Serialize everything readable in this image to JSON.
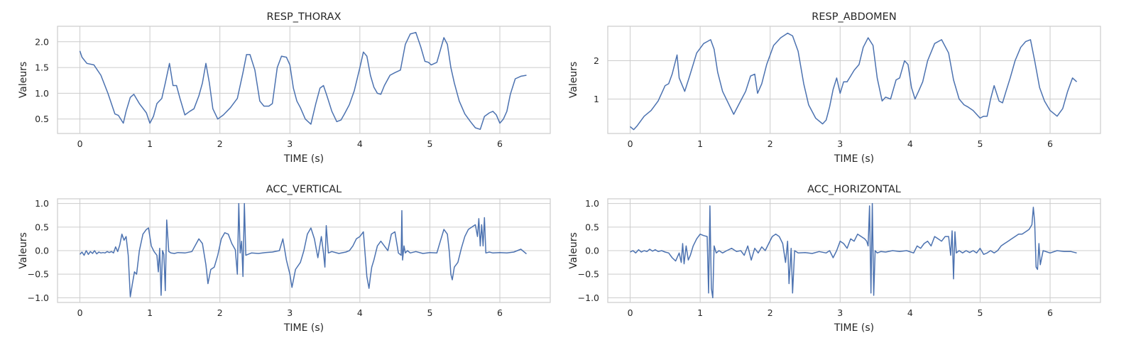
{
  "chart_data": [
    {
      "type": "line",
      "title": "RESP_THORAX",
      "xlabel": "TIME (s)",
      "ylabel": "Valeurs",
      "xlim": [
        -0.32,
        6.72
      ],
      "ylim": [
        0.22,
        2.3
      ],
      "xticks": [
        0,
        1,
        2,
        3,
        4,
        5,
        6
      ],
      "yticks": [
        0.5,
        1.0,
        1.5,
        2.0
      ],
      "ytick_labels": [
        "0.5",
        "1.0",
        "1.5",
        "2.0"
      ],
      "grid": true,
      "series": [
        {
          "color": "#4c72b0",
          "x": [
            0,
            0.03,
            0.1,
            0.2,
            0.3,
            0.4,
            0.5,
            0.55,
            0.62,
            0.66,
            0.72,
            0.77,
            0.85,
            0.95,
            1.0,
            1.05,
            1.1,
            1.17,
            1.22,
            1.28,
            1.33,
            1.38,
            1.43,
            1.5,
            1.57,
            1.63,
            1.7,
            1.75,
            1.8,
            1.85,
            1.9,
            1.97,
            2.05,
            2.15,
            2.25,
            2.33,
            2.38,
            2.43,
            2.5,
            2.57,
            2.63,
            2.7,
            2.75,
            2.82,
            2.88,
            2.95,
            3.0,
            3.05,
            3.1,
            3.15,
            3.22,
            3.3,
            3.37,
            3.43,
            3.48,
            3.53,
            3.6,
            3.67,
            3.73,
            3.78,
            3.85,
            3.92,
            4.0,
            4.05,
            4.1,
            4.15,
            4.2,
            4.25,
            4.3,
            4.35,
            4.43,
            4.5,
            4.58,
            4.65,
            4.72,
            4.8,
            4.87,
            4.93,
            4.98,
            5.02,
            5.1,
            5.2,
            5.25,
            5.3,
            5.35,
            5.42,
            5.5,
            5.58,
            5.65,
            5.72,
            5.78,
            5.85,
            5.9,
            5.95,
            6.0,
            6.05,
            6.1,
            6.15,
            6.22,
            6.3,
            6.38
          ],
          "y": [
            1.82,
            1.7,
            1.58,
            1.55,
            1.35,
            1.0,
            0.6,
            0.57,
            0.42,
            0.65,
            0.92,
            0.98,
            0.8,
            0.62,
            0.42,
            0.55,
            0.8,
            0.9,
            1.2,
            1.58,
            1.15,
            1.15,
            0.9,
            0.58,
            0.65,
            0.7,
            0.95,
            1.2,
            1.58,
            1.2,
            0.7,
            0.5,
            0.58,
            0.72,
            0.9,
            1.4,
            1.75,
            1.75,
            1.45,
            0.85,
            0.75,
            0.75,
            0.8,
            1.5,
            1.72,
            1.7,
            1.55,
            1.1,
            0.85,
            0.72,
            0.5,
            0.4,
            0.8,
            1.1,
            1.15,
            0.95,
            0.65,
            0.45,
            0.48,
            0.6,
            0.78,
            1.05,
            1.5,
            1.8,
            1.72,
            1.35,
            1.12,
            1.0,
            0.98,
            1.15,
            1.35,
            1.4,
            1.45,
            1.95,
            2.15,
            2.18,
            1.9,
            1.62,
            1.6,
            1.55,
            1.6,
            2.08,
            1.95,
            1.5,
            1.2,
            0.85,
            0.6,
            0.45,
            0.33,
            0.3,
            0.55,
            0.62,
            0.65,
            0.58,
            0.42,
            0.5,
            0.65,
            0.98,
            1.28,
            1.33,
            1.35
          ]
        }
      ]
    },
    {
      "type": "line",
      "title": "RESP_ABDOMEN",
      "xlabel": "TIME (s)",
      "ylabel": "Valeurs",
      "xlim": [
        -0.32,
        6.72
      ],
      "ylim": [
        0.1,
        2.9
      ],
      "xticks": [
        0,
        1,
        2,
        3,
        4,
        5,
        6
      ],
      "yticks": [
        1,
        2
      ],
      "ytick_labels": [
        "1",
        "2"
      ],
      "grid": true,
      "series": [
        {
          "color": "#4c72b0",
          "x": [
            0,
            0.05,
            0.1,
            0.2,
            0.3,
            0.4,
            0.5,
            0.55,
            0.6,
            0.67,
            0.7,
            0.78,
            0.85,
            0.95,
            1.05,
            1.1,
            1.15,
            1.2,
            1.25,
            1.32,
            1.4,
            1.48,
            1.55,
            1.65,
            1.72,
            1.78,
            1.82,
            1.88,
            1.95,
            2.05,
            2.15,
            2.25,
            2.32,
            2.4,
            2.48,
            2.55,
            2.65,
            2.75,
            2.8,
            2.85,
            2.9,
            2.95,
            3.0,
            3.05,
            3.1,
            3.15,
            3.2,
            3.27,
            3.33,
            3.4,
            3.47,
            3.53,
            3.6,
            3.65,
            3.72,
            3.8,
            3.85,
            3.92,
            3.97,
            4.02,
            4.07,
            4.12,
            4.18,
            4.25,
            4.35,
            4.45,
            4.55,
            4.62,
            4.7,
            4.77,
            4.82,
            4.9,
            5.0,
            5.05,
            5.1,
            5.15,
            5.2,
            5.27,
            5.32,
            5.37,
            5.43,
            5.5,
            5.58,
            5.65,
            5.72,
            5.78,
            5.85,
            5.92,
            6.0,
            6.1,
            6.18,
            6.25,
            6.32,
            6.38
          ],
          "y": [
            0.28,
            0.2,
            0.3,
            0.55,
            0.7,
            0.95,
            1.35,
            1.4,
            1.65,
            2.15,
            1.55,
            1.2,
            1.6,
            2.2,
            2.45,
            2.5,
            2.55,
            2.3,
            1.7,
            1.2,
            0.9,
            0.6,
            0.85,
            1.2,
            1.6,
            1.65,
            1.15,
            1.4,
            1.9,
            2.4,
            2.6,
            2.72,
            2.65,
            2.25,
            1.4,
            0.85,
            0.5,
            0.35,
            0.45,
            0.8,
            1.25,
            1.55,
            1.15,
            1.45,
            1.45,
            1.6,
            1.75,
            1.9,
            2.35,
            2.6,
            2.4,
            1.55,
            0.95,
            1.05,
            1.0,
            1.5,
            1.55,
            2.0,
            1.9,
            1.3,
            1.0,
            1.2,
            1.45,
            2.0,
            2.45,
            2.55,
            2.2,
            1.5,
            1.0,
            0.85,
            0.8,
            0.7,
            0.5,
            0.55,
            0.55,
            1.0,
            1.35,
            0.95,
            0.9,
            1.2,
            1.55,
            2.0,
            2.35,
            2.5,
            2.55,
            2.0,
            1.3,
            0.95,
            0.7,
            0.55,
            0.75,
            1.2,
            1.55,
            1.45
          ]
        }
      ]
    },
    {
      "type": "line",
      "title": "ACC_VERTICAL",
      "xlabel": "TIME (s)",
      "ylabel": "Valeurs",
      "xlim": [
        -0.32,
        6.72
      ],
      "ylim": [
        -1.1,
        1.1
      ],
      "xticks": [
        0,
        1,
        2,
        3,
        4,
        5,
        6
      ],
      "yticks": [
        -1.0,
        -0.5,
        0.0,
        0.5,
        1.0
      ],
      "ytick_labels": [
        "−1.0",
        "−0.5",
        "0.0",
        "0.5",
        "1.0"
      ],
      "grid": true,
      "series": [
        {
          "color": "#4c72b0",
          "x": [
            0,
            0.03,
            0.06,
            0.09,
            0.12,
            0.15,
            0.18,
            0.21,
            0.24,
            0.27,
            0.3,
            0.33,
            0.36,
            0.39,
            0.42,
            0.45,
            0.48,
            0.51,
            0.54,
            0.57,
            0.6,
            0.63,
            0.66,
            0.69,
            0.72,
            0.75,
            0.78,
            0.81,
            0.85,
            0.9,
            0.95,
            0.98,
            1.02,
            1.06,
            1.1,
            1.12,
            1.14,
            1.16,
            1.18,
            1.2,
            1.22,
            1.24,
            1.27,
            1.3,
            1.35,
            1.4,
            1.5,
            1.6,
            1.7,
            1.75,
            1.8,
            1.83,
            1.87,
            1.92,
            1.97,
            2.02,
            2.07,
            2.12,
            2.17,
            2.22,
            2.25,
            2.27,
            2.29,
            2.31,
            2.33,
            2.35,
            2.37,
            2.4,
            2.45,
            2.55,
            2.65,
            2.75,
            2.85,
            2.9,
            2.95,
            3.0,
            3.03,
            3.08,
            3.15,
            3.2,
            3.25,
            3.3,
            3.35,
            3.4,
            3.45,
            3.48,
            3.5,
            3.52,
            3.55,
            3.6,
            3.7,
            3.8,
            3.85,
            3.9,
            3.95,
            4.0,
            4.05,
            4.1,
            4.13,
            4.15,
            4.17,
            4.2,
            4.25,
            4.3,
            4.35,
            4.4,
            4.45,
            4.5,
            4.55,
            4.59,
            4.6,
            4.61,
            4.63,
            4.65,
            4.68,
            4.72,
            4.8,
            4.9,
            5.0,
            5.1,
            5.15,
            5.2,
            5.25,
            5.28,
            5.3,
            5.32,
            5.35,
            5.4,
            5.45,
            5.5,
            5.55,
            5.6,
            5.65,
            5.68,
            5.7,
            5.72,
            5.74,
            5.76,
            5.78,
            5.8,
            5.85,
            5.9,
            6.0,
            6.1,
            6.2,
            6.3,
            6.38
          ],
          "y": [
            -0.08,
            -0.03,
            -0.1,
            0.0,
            -0.08,
            -0.02,
            -0.06,
            0.0,
            -0.07,
            -0.03,
            -0.05,
            -0.04,
            -0.05,
            -0.02,
            -0.04,
            -0.02,
            -0.05,
            0.08,
            -0.02,
            0.12,
            0.35,
            0.22,
            0.3,
            -0.1,
            -0.98,
            -0.7,
            -0.45,
            -0.5,
            0.0,
            0.35,
            0.45,
            0.48,
            0.1,
            -0.02,
            -0.1,
            -0.45,
            0.05,
            -0.95,
            0.0,
            -0.08,
            -0.85,
            0.65,
            -0.02,
            -0.05,
            -0.06,
            -0.04,
            -0.05,
            -0.02,
            0.25,
            0.15,
            -0.3,
            -0.7,
            -0.4,
            -0.35,
            -0.1,
            0.25,
            0.38,
            0.35,
            0.15,
            0.02,
            -0.5,
            1.0,
            -0.05,
            0.2,
            -0.55,
            1.0,
            -0.1,
            -0.08,
            -0.05,
            -0.06,
            -0.04,
            -0.03,
            0.0,
            0.25,
            -0.2,
            -0.5,
            -0.78,
            -0.4,
            -0.25,
            0.0,
            0.35,
            0.48,
            0.25,
            -0.15,
            0.3,
            -0.05,
            -0.35,
            0.53,
            -0.05,
            -0.02,
            -0.06,
            -0.03,
            0.0,
            0.1,
            0.25,
            0.3,
            0.4,
            -0.55,
            -0.8,
            -0.55,
            -0.35,
            -0.2,
            0.1,
            0.2,
            0.1,
            0.0,
            0.35,
            0.4,
            -0.05,
            -0.1,
            0.85,
            -0.2,
            0.1,
            -0.05,
            0.0,
            -0.05,
            -0.02,
            -0.06,
            -0.04,
            -0.05,
            0.2,
            0.45,
            0.35,
            -0.05,
            -0.5,
            -0.62,
            -0.35,
            -0.25,
            0.05,
            0.3,
            0.45,
            0.5,
            0.55,
            0.3,
            0.68,
            0.1,
            0.55,
            0.1,
            0.7,
            -0.05,
            -0.03,
            -0.05,
            -0.04,
            -0.05,
            -0.03,
            0.03,
            -0.07
          ]
        }
      ]
    },
    {
      "type": "line",
      "title": "ACC_HORIZONTAL",
      "xlabel": "TIME (s)",
      "ylabel": "Valeurs",
      "xlim": [
        -0.32,
        6.72
      ],
      "ylim": [
        -1.1,
        1.1
      ],
      "xticks": [
        0,
        1,
        2,
        3,
        4,
        5,
        6
      ],
      "yticks": [
        -1.0,
        -0.5,
        0.0,
        0.5,
        1.0
      ],
      "ytick_labels": [
        "−1.0",
        "−0.5",
        "0.0",
        "0.5",
        "1.0"
      ],
      "grid": true,
      "series": [
        {
          "color": "#4c72b0",
          "x": [
            0,
            0.04,
            0.08,
            0.12,
            0.16,
            0.2,
            0.24,
            0.28,
            0.32,
            0.36,
            0.4,
            0.45,
            0.5,
            0.55,
            0.6,
            0.65,
            0.7,
            0.73,
            0.75,
            0.77,
            0.8,
            0.83,
            0.86,
            0.9,
            0.95,
            1.0,
            1.05,
            1.1,
            1.12,
            1.14,
            1.16,
            1.18,
            1.2,
            1.23,
            1.27,
            1.32,
            1.38,
            1.45,
            1.52,
            1.58,
            1.63,
            1.68,
            1.73,
            1.78,
            1.83,
            1.88,
            1.93,
            1.98,
            2.03,
            2.08,
            2.13,
            2.18,
            2.22,
            2.25,
            2.27,
            2.3,
            2.32,
            2.35,
            2.4,
            2.5,
            2.6,
            2.7,
            2.8,
            2.85,
            2.9,
            2.95,
            3.0,
            3.05,
            3.1,
            3.15,
            3.2,
            3.25,
            3.3,
            3.35,
            3.38,
            3.4,
            3.42,
            3.44,
            3.46,
            3.48,
            3.5,
            3.53,
            3.58,
            3.65,
            3.75,
            3.85,
            3.95,
            4.05,
            4.1,
            4.15,
            4.2,
            4.25,
            4.3,
            4.35,
            4.4,
            4.45,
            4.5,
            4.55,
            4.58,
            4.6,
            4.62,
            4.64,
            4.66,
            4.7,
            4.75,
            4.8,
            4.85,
            4.9,
            4.95,
            5.0,
            5.05,
            5.1,
            5.15,
            5.2,
            5.25,
            5.3,
            5.35,
            5.4,
            5.45,
            5.5,
            5.55,
            5.6,
            5.65,
            5.7,
            5.72,
            5.74,
            5.76,
            5.78,
            5.8,
            5.82,
            5.84,
            5.86,
            5.9,
            6.0,
            6.1,
            6.2,
            6.3,
            6.38
          ],
          "y": [
            -0.03,
            0.0,
            -0.05,
            0.02,
            -0.03,
            0.0,
            -0.02,
            0.03,
            -0.01,
            0.02,
            -0.02,
            0.0,
            -0.03,
            -0.05,
            -0.15,
            -0.22,
            -0.05,
            -0.25,
            0.15,
            -0.28,
            0.1,
            -0.2,
            -0.1,
            0.1,
            0.25,
            0.35,
            0.32,
            0.3,
            -0.9,
            0.95,
            -0.8,
            -1.0,
            0.1,
            -0.05,
            0.0,
            -0.05,
            0.0,
            0.05,
            -0.02,
            0.0,
            -0.1,
            0.1,
            -0.2,
            0.05,
            -0.05,
            0.08,
            0.0,
            0.15,
            0.3,
            0.35,
            0.3,
            0.15,
            -0.25,
            0.2,
            -0.7,
            0.05,
            -0.9,
            0.0,
            -0.05,
            -0.04,
            -0.06,
            -0.02,
            -0.05,
            0.0,
            -0.15,
            0.0,
            0.2,
            0.15,
            0.05,
            0.25,
            0.2,
            0.35,
            0.3,
            0.25,
            0.2,
            0.1,
            0.95,
            -0.9,
            1.0,
            -0.95,
            0.0,
            -0.05,
            -0.02,
            -0.03,
            0.0,
            -0.02,
            0.0,
            -0.05,
            0.1,
            0.05,
            0.15,
            0.2,
            0.1,
            0.3,
            0.25,
            0.2,
            0.3,
            0.3,
            -0.1,
            0.42,
            -0.6,
            0.4,
            -0.05,
            0.0,
            -0.05,
            0.0,
            -0.04,
            0.0,
            -0.05,
            0.05,
            -0.08,
            -0.05,
            0.0,
            -0.05,
            0.0,
            0.1,
            0.15,
            0.2,
            0.25,
            0.3,
            0.35,
            0.35,
            0.4,
            0.45,
            0.5,
            0.55,
            0.92,
            0.6,
            -0.35,
            -0.4,
            0.15,
            -0.3,
            0.0,
            -0.05,
            0.0,
            -0.02,
            -0.02,
            -0.05
          ]
        }
      ]
    }
  ]
}
